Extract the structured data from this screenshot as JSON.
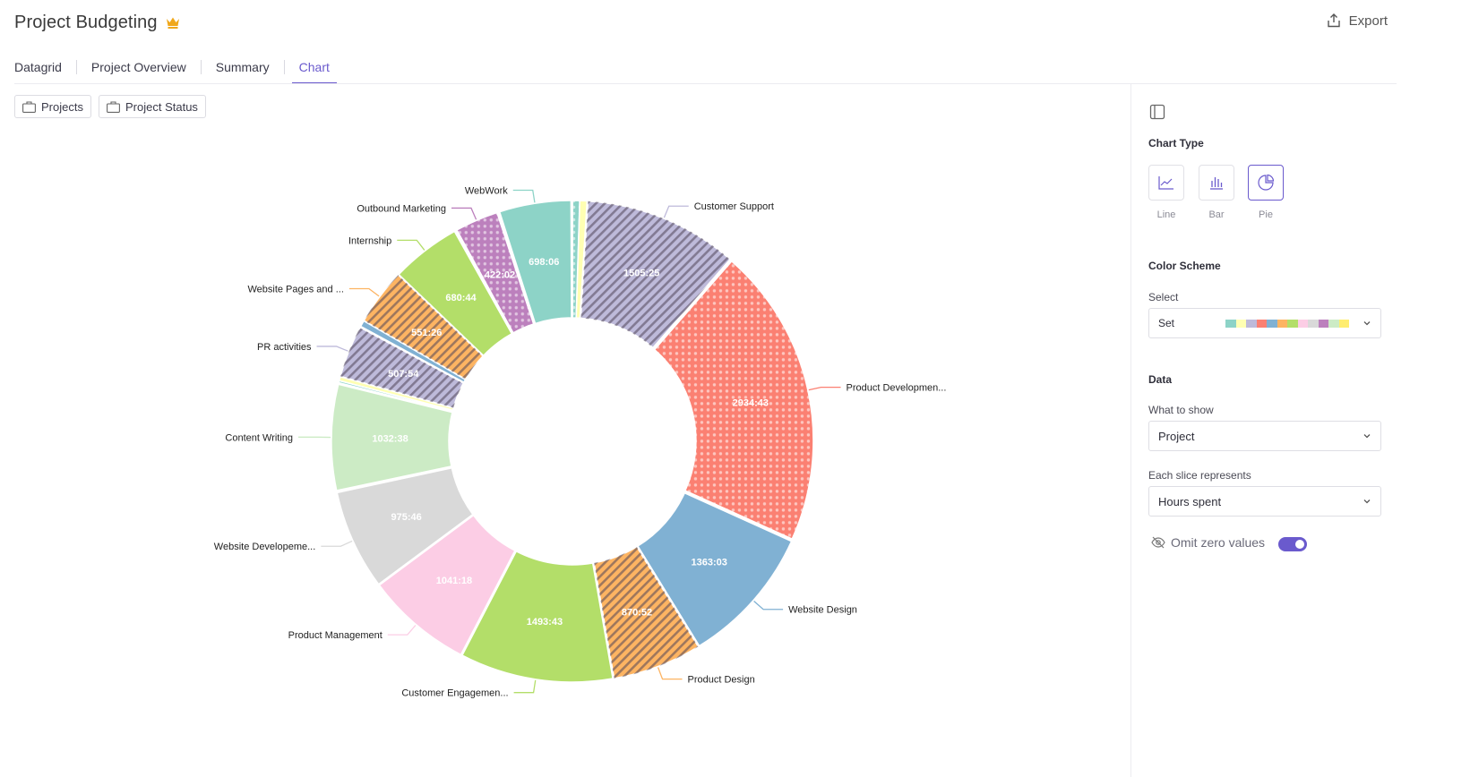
{
  "app": {
    "title": "Project Budgeting",
    "export_label": "Export"
  },
  "tabs": [
    {
      "label": "Datagrid"
    },
    {
      "label": "Project Overview"
    },
    {
      "label": "Summary"
    },
    {
      "label": "Chart",
      "active": true
    }
  ],
  "chips": [
    {
      "label": "Projects"
    },
    {
      "label": "Project Status"
    }
  ],
  "panel": {
    "chart_type_title": "Chart Type",
    "chart_types": [
      {
        "label": "Line",
        "icon": "line-chart-icon"
      },
      {
        "label": "Bar",
        "icon": "bar-chart-icon"
      },
      {
        "label": "Pie",
        "icon": "pie-chart-icon",
        "selected": true
      }
    ],
    "color_scheme_title": "Color Scheme",
    "select_label": "Select",
    "scheme_value": "Set",
    "scheme_colors": [
      "#8dd3c7",
      "#ffffb3",
      "#bebada",
      "#fb8072",
      "#80b1d3",
      "#fdb462",
      "#b3de69",
      "#fccde5",
      "#d9d9d9",
      "#bc80bd",
      "#ccebc5",
      "#ffed6f"
    ],
    "data_title": "Data",
    "what_label": "What to show",
    "what_value": "Project",
    "slice_label": "Each slice represents",
    "slice_value": "Hours spent",
    "omit_label": "Omit zero values",
    "omit_enabled": true
  },
  "chart_data": {
    "type": "pie",
    "variant": "donut",
    "measure": "Hours spent",
    "slices": [
      {
        "label": "",
        "value_label": "",
        "value": 70,
        "color": "#8dd3c7",
        "pattern": "dots"
      },
      {
        "label": "",
        "value_label": "",
        "value": 70,
        "color": "#ffffb3",
        "pattern": "none"
      },
      {
        "label": "Customer Support",
        "value_label": "1505:25",
        "value": 1505.42,
        "color": "#bebada",
        "pattern": "stripes"
      },
      {
        "label": "Product Developmen...",
        "value_label": "2934:43",
        "value": 2934.72,
        "color": "#fb8072",
        "pattern": "dots"
      },
      {
        "label": "Website Design",
        "value_label": "1363:03",
        "value": 1363.05,
        "color": "#80b1d3",
        "pattern": "none"
      },
      {
        "label": "Product Design",
        "value_label": "870:52",
        "value": 870.87,
        "color": "#fdb462",
        "pattern": "stripes"
      },
      {
        "label": "Customer Engagemen...",
        "value_label": "1493:43",
        "value": 1493.72,
        "color": "#b3de69",
        "pattern": "none"
      },
      {
        "label": "Product Management",
        "value_label": "1041:18",
        "value": 1041.3,
        "color": "#fccde5",
        "pattern": "none"
      },
      {
        "label": "Website Developeme...",
        "value_label": "975:46",
        "value": 975.77,
        "color": "#d9d9d9",
        "pattern": "none"
      },
      {
        "label": "",
        "value_label": "",
        "value": 10,
        "color": "#bc80bd",
        "pattern": "none"
      },
      {
        "label": "Content Writing",
        "value_label": "1032:38",
        "value": 1032.63,
        "color": "#ccebc5",
        "pattern": "none"
      },
      {
        "label": "",
        "value_label": "",
        "value": 10,
        "color": "#ffed6f",
        "pattern": "none"
      },
      {
        "label": "",
        "value_label": "",
        "value": 20,
        "color": "#8dd3c7",
        "pattern": "none"
      },
      {
        "label": "",
        "value_label": "",
        "value": 40,
        "color": "#ffffb3",
        "pattern": "none"
      },
      {
        "label": "PR activities",
        "value_label": "507:54",
        "value": 507.9,
        "color": "#bebada",
        "pattern": "stripes"
      },
      {
        "label": "",
        "value_label": "",
        "value": 10,
        "color": "#fb8072",
        "pattern": "none"
      },
      {
        "label": "",
        "value_label": "",
        "value": 60,
        "color": "#80b1d3",
        "pattern": "none"
      },
      {
        "label": "Website Pages and ...",
        "value_label": "551:26",
        "value": 551.43,
        "color": "#fdb462",
        "pattern": "stripes"
      },
      {
        "label": "Internship",
        "value_label": "680:44",
        "value": 680.73,
        "color": "#b3de69",
        "pattern": "none"
      },
      {
        "label": "",
        "value_label": "",
        "value": 10,
        "color": "#fccde5",
        "pattern": "none"
      },
      {
        "label": "",
        "value_label": "",
        "value": 10,
        "color": "#d9d9d9",
        "pattern": "none"
      },
      {
        "label": "Outbound Marketing",
        "value_label": "422:02",
        "value": 422.03,
        "color": "#bc80bd",
        "pattern": "dots"
      },
      {
        "label": "",
        "value_label": "",
        "value": 10,
        "color": "#ccebc5",
        "pattern": "none"
      },
      {
        "label": "",
        "value_label": "",
        "value": 10,
        "color": "#ffed6f",
        "pattern": "none"
      },
      {
        "label": "WebWork",
        "value_label": "698:06",
        "value": 698.1,
        "color": "#8dd3c7",
        "pattern": "none"
      },
      {
        "label": "",
        "value_label": "",
        "value": 10,
        "color": "#ffffb3",
        "pattern": "none"
      }
    ]
  }
}
